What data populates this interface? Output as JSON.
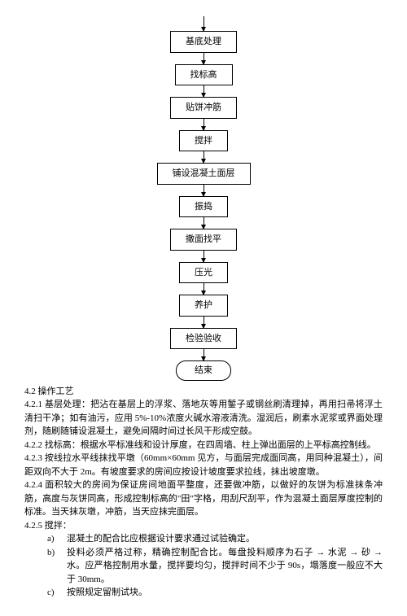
{
  "flowchart": {
    "steps": [
      "基底处理",
      "找标高",
      "贴饼冲筋",
      "搅拌",
      "铺设混凝土面层",
      "振捣",
      "撒面找平",
      "压光",
      "养护",
      "检验验收"
    ],
    "end": "结束"
  },
  "section": {
    "title": "4.2 操作工艺",
    "p421": "4.2.1 基层处理：把沾在基层上的浮浆、落地灰等用錾子或钢丝刷清理掉，再用扫帚将浮土清扫干净；如有油污，应用 5%-10%浓度火碱水溶液清洗。湿润后，刷素水泥浆或界面处理剂，随刷随铺设混凝土，避免间隔时间过长风干形成空鼓。",
    "p422": "4.2.2 找标高：根据水平标准线和设计厚度，在四周墙、柱上弹出面层的上平标高控制线。",
    "p423": "4.2.3 按线拉水平线抹找平墩（60mm×60mm 见方，与面层完成面同高，用同种混凝土），间距双向不大于 2m。有坡度要求的房间应按设计坡度要求拉线，抹出坡度墩。",
    "p424": "4.2.4 面积较大的房间为保证房间地面平整度，还要做冲筋，以做好的灰饼为标准抹条冲筋，高度与灰饼同高，形成控制标高的\"田\"字格，用刮尺刮平，作为混凝土面层厚度控制的标准。当天抹灰墩，冲筋，当天应抹完面层。",
    "p425_title": "4.2.5 搅拌：",
    "list": [
      {
        "marker": "a)",
        "text": "混凝土的配合比应根据设计要求通过试验确定。"
      },
      {
        "marker": "b)",
        "text": "投料必须严格过称，精确控制配合比。每盘投料顺序为石子 → 水泥 → 砂 → 水。应严格控制用水量，搅拌要均匀，搅拌时间不少于 90s，塌落度一般应不大于 30mm。"
      },
      {
        "marker": "c)",
        "text": "按照规定留制试块。"
      }
    ]
  }
}
